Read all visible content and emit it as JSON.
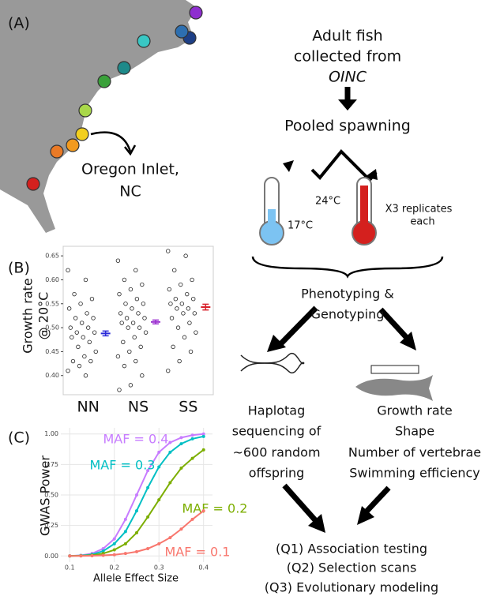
{
  "panel_a": {
    "label": "(A)",
    "site": [
      "Oregon Inlet,",
      "NC"
    ]
  },
  "flow": {
    "collect": [
      "Adult fish",
      "collected from",
      "OINC"
    ],
    "spawn": "Pooled spawning",
    "cold": "17°C",
    "warm": "24°C",
    "replicates": [
      "X3 replicates",
      "each"
    ],
    "pheno": [
      "Phenotyping &",
      "Genotyping"
    ],
    "seq": [
      "Haplotag",
      "sequencing of",
      "~600 random",
      "offspring"
    ],
    "traits": [
      "Growth rate",
      "Shape",
      "Number of vertebrae",
      "Swimming efficiency"
    ],
    "questions": [
      "(Q1) Association testing",
      "(Q2) Selection scans",
      "(Q3) Evolutionary modeling"
    ]
  },
  "chart_data": [
    {
      "type": "strip",
      "panel": "(B)",
      "y_label": [
        "Growth rate",
        "@ 20°C"
      ],
      "categories": [
        "NN",
        "NS",
        "SS"
      ],
      "values": [
        [
          0.62,
          0.6,
          0.57,
          0.56,
          0.55,
          0.54,
          0.53,
          0.52,
          0.52,
          0.51,
          0.5,
          0.5,
          0.49,
          0.49,
          0.48,
          0.48,
          0.47,
          0.46,
          0.45,
          0.44,
          0.43,
          0.43,
          0.42,
          0.41,
          0.4
        ],
        [
          0.64,
          0.62,
          0.6,
          0.59,
          0.58,
          0.57,
          0.56,
          0.55,
          0.55,
          0.54,
          0.53,
          0.53,
          0.52,
          0.52,
          0.51,
          0.51,
          0.5,
          0.5,
          0.49,
          0.48,
          0.47,
          0.46,
          0.45,
          0.44,
          0.43,
          0.42,
          0.4,
          0.38,
          0.37
        ],
        [
          0.66,
          0.65,
          0.62,
          0.6,
          0.59,
          0.58,
          0.57,
          0.56,
          0.56,
          0.55,
          0.55,
          0.54,
          0.54,
          0.53,
          0.53,
          0.52,
          0.51,
          0.5,
          0.49,
          0.48,
          0.46,
          0.45,
          0.43,
          0.41
        ]
      ],
      "means": [
        0.488,
        0.512,
        0.543
      ],
      "errors": [
        0.005,
        0.004,
        0.006
      ],
      "mean_colors": [
        "#2a2ad8",
        "#9b30d0",
        "#d8202a"
      ],
      "ylim": [
        0.36,
        0.67
      ],
      "yticks": [
        {
          "value": 0.4,
          "label": "0.40"
        },
        {
          "value": 0.45,
          "label": "0.45"
        },
        {
          "value": 0.5,
          "label": "0.50"
        },
        {
          "value": 0.55,
          "label": "0.55"
        },
        {
          "value": 0.6,
          "label": "0.60"
        },
        {
          "value": 0.65,
          "label": "0.65"
        }
      ]
    },
    {
      "type": "line",
      "panel": "(C)",
      "x_label": "Allele Effect Size",
      "y_label": "GWAS Power",
      "x": [
        0.1,
        0.125,
        0.15,
        0.175,
        0.2,
        0.225,
        0.25,
        0.275,
        0.3,
        0.325,
        0.35,
        0.375,
        0.4
      ],
      "series": [
        {
          "name": "MAF = 0.4",
          "color": "#c77cff",
          "values": [
            0,
            0.005,
            0.02,
            0.06,
            0.14,
            0.3,
            0.5,
            0.7,
            0.85,
            0.93,
            0.97,
            0.99,
            1.0
          ]
        },
        {
          "name": "MAF = 0.3",
          "color": "#00bfc4",
          "values": [
            0,
            0.003,
            0.012,
            0.04,
            0.1,
            0.2,
            0.37,
            0.56,
            0.73,
            0.85,
            0.92,
            0.96,
            0.98
          ]
        },
        {
          "name": "MAF = 0.2",
          "color": "#7cae00",
          "values": [
            0,
            0.002,
            0.006,
            0.02,
            0.05,
            0.1,
            0.19,
            0.32,
            0.46,
            0.6,
            0.72,
            0.8,
            0.87
          ]
        },
        {
          "name": "MAF = 0.1",
          "color": "#f8766d",
          "values": [
            0,
            0,
            0.002,
            0.005,
            0.01,
            0.02,
            0.035,
            0.06,
            0.1,
            0.15,
            0.22,
            0.3,
            0.37
          ]
        }
      ],
      "xlim": [
        0.08,
        0.42
      ],
      "xticks": [
        0.1,
        0.2,
        0.3,
        0.4
      ],
      "ylim": [
        -0.05,
        1.05
      ],
      "yticks": [
        {
          "value": 0,
          "label": "0.00"
        },
        {
          "value": 0.25,
          "label": "0.25"
        },
        {
          "value": 0.5,
          "label": "0.50"
        },
        {
          "value": 0.75,
          "label": "0.75"
        },
        {
          "value": 1,
          "label": "1.00"
        }
      ]
    }
  ]
}
